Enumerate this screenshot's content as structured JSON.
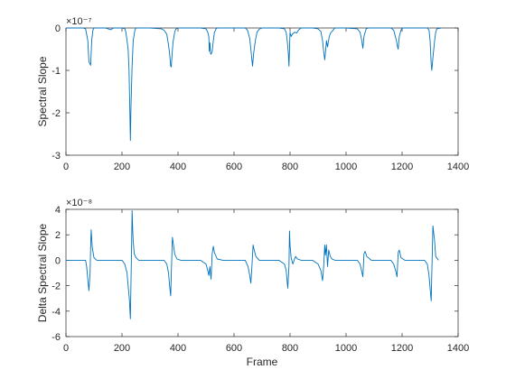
{
  "figure": {
    "background": "#ffffff",
    "line_color": "#0072bd",
    "axis_color": "#262626"
  },
  "chart_data": [
    {
      "type": "line",
      "title": "",
      "xlabel": "",
      "ylabel": "Spectral Slope",
      "scale_label": "×10⁻⁷",
      "xlim": [
        0,
        1400
      ],
      "ylim": [
        -3,
        0
      ],
      "xticks": [
        0,
        200,
        400,
        600,
        800,
        1000,
        1200,
        1400
      ],
      "yticks": [
        -3,
        -2,
        -1,
        0
      ],
      "grid": false,
      "series": [
        {
          "x": [
            0,
            60,
            70,
            74,
            78,
            82,
            86,
            88,
            92,
            96,
            100,
            140,
            160,
            170,
            200,
            210,
            214,
            218,
            222,
            225,
            228,
            230,
            232,
            236,
            240,
            246,
            250,
            300,
            340,
            350,
            360,
            366,
            370,
            374,
            376,
            378,
            382,
            388,
            392,
            400,
            480,
            500,
            506,
            510,
            512,
            514,
            516,
            518,
            522,
            526,
            530,
            536,
            540,
            560,
            600,
            640,
            648,
            656,
            660,
            664,
            666,
            670,
            676,
            682,
            690,
            700,
            760,
            780,
            786,
            790,
            794,
            796,
            798,
            800,
            804,
            808,
            816,
            824,
            830,
            840,
            880,
            900,
            910,
            916,
            920,
            924,
            926,
            930,
            934,
            940,
            946,
            950,
            960,
            1000,
            1040,
            1050,
            1056,
            1060,
            1064,
            1068,
            1072,
            1080,
            1100,
            1160,
            1170,
            1180,
            1184,
            1186,
            1190,
            1196,
            1200,
            1280,
            1290,
            1296,
            1300,
            1304,
            1306,
            1310,
            1316,
            1320,
            1324,
            1340
          ],
          "y": [
            0,
            0,
            -0.02,
            -0.15,
            -0.3,
            -0.8,
            -0.85,
            -0.88,
            -0.3,
            -0.05,
            0,
            0,
            -0.04,
            0,
            0,
            -0.02,
            -0.1,
            -0.3,
            -0.5,
            -1.0,
            -1.95,
            -2.65,
            -1.9,
            -0.9,
            -0.3,
            -0.05,
            0,
            0,
            -0.02,
            -0.05,
            -0.15,
            -0.4,
            -0.6,
            -0.9,
            -0.92,
            -0.7,
            -0.35,
            -0.1,
            -0.03,
            0,
            0,
            -0.02,
            -0.1,
            -0.2,
            -0.55,
            -0.35,
            -0.6,
            -0.62,
            -0.55,
            -0.3,
            -0.1,
            -0.02,
            0,
            0,
            0,
            0,
            -0.05,
            -0.25,
            -0.5,
            -0.75,
            -0.9,
            -0.6,
            -0.3,
            -0.1,
            -0.03,
            0,
            0,
            -0.02,
            -0.1,
            -0.3,
            -0.6,
            -0.9,
            -0.5,
            -0.1,
            -0.2,
            -0.15,
            -0.1,
            -0.12,
            -0.05,
            0,
            0,
            -0.02,
            -0.08,
            -0.3,
            -0.55,
            -0.75,
            -0.6,
            -0.3,
            -0.45,
            -0.2,
            -0.1,
            -0.08,
            0,
            0,
            -0.02,
            -0.1,
            -0.3,
            -0.48,
            -0.2,
            -0.1,
            -0.02,
            0,
            0,
            0,
            -0.05,
            -0.3,
            -0.45,
            -0.5,
            -0.2,
            -0.05,
            0,
            0,
            0,
            -0.05,
            -0.3,
            -0.85,
            -1.0,
            -0.7,
            -0.3,
            -0.1,
            -0.02,
            0
          ]
        }
      ]
    },
    {
      "type": "line",
      "title": "",
      "xlabel": "Frame",
      "ylabel": "Delta Spectral Slope",
      "scale_label": "×10⁻⁸",
      "xlim": [
        0,
        1400
      ],
      "ylim": [
        -6,
        4
      ],
      "xticks": [
        0,
        200,
        400,
        600,
        800,
        1000,
        1200,
        1400
      ],
      "yticks": [
        -6,
        -4,
        -2,
        0,
        2,
        4
      ],
      "grid": false,
      "series": [
        {
          "x": [
            0,
            70,
            74,
            78,
            82,
            86,
            88,
            90,
            94,
            100,
            110,
            140,
            200,
            210,
            218,
            222,
            226,
            230,
            232,
            234,
            236,
            238,
            240,
            244,
            250,
            260,
            300,
            350,
            360,
            366,
            370,
            374,
            376,
            380,
            384,
            388,
            396,
            410,
            480,
            500,
            506,
            510,
            514,
            518,
            522,
            526,
            530,
            540,
            560,
            640,
            650,
            656,
            660,
            664,
            668,
            672,
            678,
            690,
            760,
            780,
            786,
            792,
            796,
            798,
            800,
            804,
            810,
            816,
            820,
            826,
            840,
            880,
            900,
            910,
            916,
            920,
            924,
            926,
            930,
            934,
            938,
            944,
            950,
            960,
            1040,
            1050,
            1056,
            1060,
            1064,
            1068,
            1074,
            1090,
            1160,
            1170,
            1178,
            1182,
            1186,
            1190,
            1196,
            1210,
            1280,
            1290,
            1296,
            1300,
            1304,
            1306,
            1310,
            1316,
            1320,
            1330
          ],
          "y": [
            0,
            0,
            -0.5,
            -1.5,
            -2.4,
            -1.0,
            1.0,
            2.4,
            1.0,
            0.2,
            0,
            0,
            0,
            -0.3,
            -1.0,
            -2.0,
            -3.0,
            -4.6,
            -2.0,
            0.5,
            3.9,
            2.5,
            1.5,
            0.5,
            0.2,
            0,
            0,
            0,
            -0.3,
            -1.0,
            -2.0,
            -2.8,
            -1.0,
            1.8,
            1.2,
            0.5,
            0.1,
            0,
            0,
            -0.3,
            -0.8,
            -1.2,
            -0.5,
            -1.5,
            0.5,
            1.1,
            0.6,
            0.1,
            0,
            0,
            -0.5,
            -1.2,
            -1.8,
            -0.5,
            1.2,
            0.8,
            0.3,
            0,
            0,
            -0.3,
            -0.8,
            -2.2,
            -0.5,
            2.3,
            1.2,
            0.2,
            -0.3,
            0.1,
            0.3,
            0.1,
            0,
            0,
            -0.3,
            -0.8,
            -1.6,
            -0.5,
            1.2,
            0.4,
            1.2,
            -0.5,
            0.8,
            0.3,
            0.1,
            0,
            0,
            -0.3,
            -0.9,
            -1.3,
            0.5,
            0.7,
            0.3,
            0,
            0,
            -0.3,
            -0.9,
            -1.3,
            0.6,
            0.8,
            0.2,
            0,
            0,
            -0.3,
            -1.2,
            -2.2,
            -3.2,
            -1.0,
            2.7,
            1.5,
            0.3,
            0
          ]
        }
      ]
    }
  ]
}
